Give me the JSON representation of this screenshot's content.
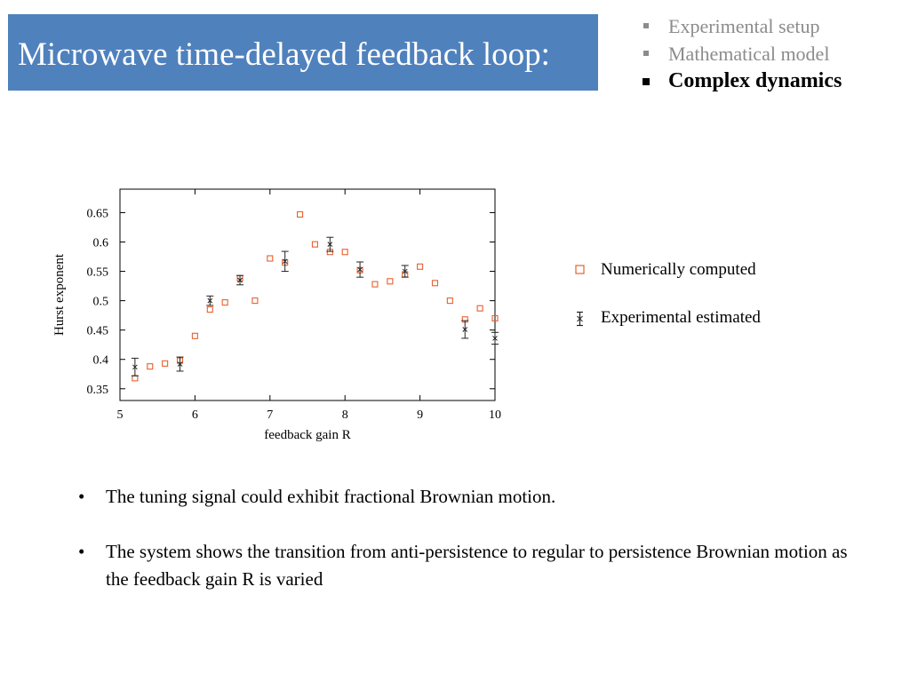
{
  "slide": {
    "title": "Microwave time-delayed feedback loop:",
    "nav": [
      {
        "label": "Experimental setup",
        "active": false
      },
      {
        "label": "Mathematical model",
        "active": false
      },
      {
        "label": "Complex dynamics",
        "active": true
      }
    ],
    "bullets": [
      "The tuning signal could exhibit fractional Brownian motion.",
      "The system shows the transition from anti-persistence to regular to persistence Brownian motion as the feedback gain R is varied"
    ],
    "bullet_glyph": "•"
  },
  "colors": {
    "title_bg": "#4f81bd",
    "title_text": "#ffffff",
    "nav_inactive": "#8c8c8c",
    "numerical_marker": "#e8602c",
    "experimental_marker": "#222222"
  },
  "chart_data": {
    "type": "scatter",
    "xlabel": "feedback gain R",
    "ylabel": "Hurst exponent",
    "xlim": [
      5,
      10
    ],
    "ylim": [
      0.33,
      0.69
    ],
    "xticks": [
      "5",
      "6",
      "7",
      "8",
      "9",
      "10"
    ],
    "yticks": [
      "0.35",
      "0.4",
      "0.45",
      "0.5",
      "0.55",
      "0.6",
      "0.65"
    ],
    "legend_position": "right-outside",
    "series": [
      {
        "name": "Numerically computed",
        "marker": "open-square",
        "x": [
          5.2,
          5.4,
          5.6,
          5.8,
          6.0,
          6.2,
          6.4,
          6.6,
          6.8,
          7.0,
          7.2,
          7.4,
          7.6,
          7.8,
          8.0,
          8.2,
          8.4,
          8.6,
          8.8,
          9.0,
          9.2,
          9.4,
          9.6,
          9.8,
          10.0
        ],
        "y": [
          0.368,
          0.388,
          0.393,
          0.398,
          0.44,
          0.485,
          0.497,
          0.538,
          0.5,
          0.572,
          0.565,
          0.647,
          0.596,
          0.583,
          0.583,
          0.552,
          0.528,
          0.533,
          0.545,
          0.558,
          0.53,
          0.5,
          0.468,
          0.487,
          0.47
        ]
      },
      {
        "name": "Experimental estimated",
        "marker": "cross-errorbar",
        "x": [
          5.2,
          5.8,
          6.2,
          6.6,
          7.2,
          7.8,
          8.2,
          8.8,
          9.6,
          10.0
        ],
        "y": [
          0.387,
          0.392,
          0.5,
          0.535,
          0.567,
          0.596,
          0.553,
          0.55,
          0.451,
          0.436
        ],
        "err": [
          0.015,
          0.012,
          0.008,
          0.008,
          0.017,
          0.012,
          0.013,
          0.01,
          0.015,
          0.01
        ]
      }
    ]
  }
}
